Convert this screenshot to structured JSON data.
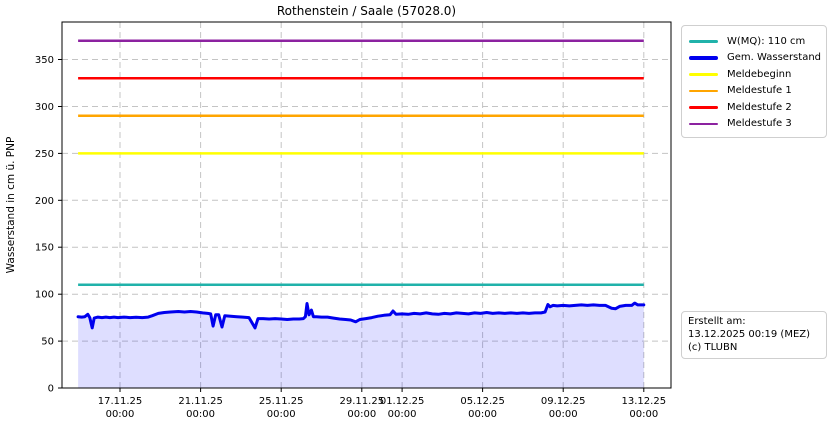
{
  "header": {
    "title": "Rothenstein / Saale (57028.0)"
  },
  "chart_data": {
    "type": "line",
    "title": "Rothenstein / Saale (57028.0)",
    "xlabel": "",
    "ylabel": "Wasserstand in cm ü. PNP",
    "grid": true,
    "legend_position": "upper right outside",
    "ylim": [
      0,
      390
    ],
    "xlim_days": [
      -2.88,
      27.35
    ],
    "y_ticks": [
      0,
      50,
      100,
      150,
      200,
      250,
      300,
      350
    ],
    "x_ticks": [
      {
        "day": 0,
        "label": "17.11.25",
        "sub": "00:00"
      },
      {
        "day": 4,
        "label": "21.11.25",
        "sub": "00:00"
      },
      {
        "day": 8,
        "label": "25.11.25",
        "sub": "00:00"
      },
      {
        "day": 12,
        "label": "29.11.25",
        "sub": "00:00"
      },
      {
        "day": 14,
        "label": "01.12.25",
        "sub": "00:00"
      },
      {
        "day": 18,
        "label": "05.12.25",
        "sub": "00:00"
      },
      {
        "day": 22,
        "label": "09.12.25",
        "sub": "00:00"
      },
      {
        "day": 26,
        "label": "13.12.25",
        "sub": "00:00"
      }
    ],
    "data_x_range_days": [
      -2.08,
      26.0
    ],
    "reference_lines": [
      {
        "name": "W(MQ): 110 cm",
        "value": 110,
        "color": "#20B2AA",
        "width": 2.5
      },
      {
        "name": "Meldebeginn",
        "value": 250,
        "color": "#FFFF00",
        "width": 2.5
      },
      {
        "name": "Meldestufe 1",
        "value": 290,
        "color": "#FFA500",
        "width": 2.5
      },
      {
        "name": "Meldestufe 2",
        "value": 330,
        "color": "#FF0000",
        "width": 2.5
      },
      {
        "name": "Meldestufe 3",
        "value": 370,
        "color": "#8C22A0",
        "width": 2.5
      }
    ],
    "series": [
      {
        "name": "Gem. Wasserstand",
        "color": "#0000EE",
        "width": 3,
        "fill": "rgba(0,0,255,0.13)",
        "unit": "cm",
        "points": [
          [
            -2.08,
            76
          ],
          [
            -1.9,
            75.5
          ],
          [
            -1.75,
            76
          ],
          [
            -1.6,
            78.5
          ],
          [
            -1.5,
            75
          ],
          [
            -1.38,
            64
          ],
          [
            -1.28,
            74.5
          ],
          [
            -1.1,
            75.5
          ],
          [
            -0.9,
            75
          ],
          [
            -0.7,
            75.5
          ],
          [
            -0.5,
            75
          ],
          [
            -0.3,
            75.5
          ],
          [
            -0.1,
            75
          ],
          [
            0.2,
            75.5
          ],
          [
            0.5,
            75
          ],
          [
            0.8,
            75.3
          ],
          [
            1.1,
            75
          ],
          [
            1.4,
            75.5
          ],
          [
            1.6,
            77
          ],
          [
            1.9,
            79.5
          ],
          [
            2.2,
            80.5
          ],
          [
            2.5,
            81
          ],
          [
            2.9,
            81.5
          ],
          [
            3.2,
            81
          ],
          [
            3.5,
            81.5
          ],
          [
            3.8,
            81
          ],
          [
            4.1,
            80
          ],
          [
            4.35,
            79.5
          ],
          [
            4.5,
            79
          ],
          [
            4.62,
            66
          ],
          [
            4.75,
            78
          ],
          [
            4.9,
            78
          ],
          [
            5.06,
            65
          ],
          [
            5.2,
            77
          ],
          [
            5.5,
            76.5
          ],
          [
            5.8,
            76
          ],
          [
            6.1,
            75.5
          ],
          [
            6.4,
            75
          ],
          [
            6.7,
            64
          ],
          [
            6.85,
            74
          ],
          [
            7.1,
            74
          ],
          [
            7.4,
            73.5
          ],
          [
            7.7,
            74
          ],
          [
            8.0,
            73.5
          ],
          [
            8.3,
            73
          ],
          [
            8.6,
            73.5
          ],
          [
            8.9,
            73.5
          ],
          [
            9.1,
            74
          ],
          [
            9.2,
            76
          ],
          [
            9.28,
            90
          ],
          [
            9.38,
            78
          ],
          [
            9.5,
            83
          ],
          [
            9.6,
            76
          ],
          [
            9.75,
            76
          ],
          [
            10.0,
            75.5
          ],
          [
            10.3,
            75.5
          ],
          [
            10.6,
            74.5
          ],
          [
            10.9,
            73.5
          ],
          [
            11.2,
            73
          ],
          [
            11.45,
            72.5
          ],
          [
            11.7,
            70.5
          ],
          [
            11.9,
            73
          ],
          [
            12.2,
            74
          ],
          [
            12.5,
            75
          ],
          [
            12.8,
            76.5
          ],
          [
            13.1,
            77.5
          ],
          [
            13.4,
            78
          ],
          [
            13.55,
            82
          ],
          [
            13.7,
            78.5
          ],
          [
            14.0,
            79
          ],
          [
            14.3,
            78.5
          ],
          [
            14.6,
            79.5
          ],
          [
            14.9,
            79
          ],
          [
            15.2,
            80
          ],
          [
            15.5,
            79
          ],
          [
            15.8,
            78.5
          ],
          [
            16.1,
            79.5
          ],
          [
            16.4,
            79
          ],
          [
            16.7,
            80
          ],
          [
            17.0,
            79.5
          ],
          [
            17.3,
            79
          ],
          [
            17.6,
            80
          ],
          [
            17.9,
            79.5
          ],
          [
            18.2,
            80.5
          ],
          [
            18.5,
            79.5
          ],
          [
            18.8,
            80
          ],
          [
            19.1,
            79.5
          ],
          [
            19.4,
            80
          ],
          [
            19.7,
            79.5
          ],
          [
            20.0,
            80
          ],
          [
            20.3,
            79.5
          ],
          [
            20.6,
            80
          ],
          [
            20.9,
            80
          ],
          [
            21.1,
            81
          ],
          [
            21.24,
            89
          ],
          [
            21.35,
            86.5
          ],
          [
            21.5,
            88
          ],
          [
            21.7,
            87.5
          ],
          [
            22.0,
            88
          ],
          [
            22.3,
            87.5
          ],
          [
            22.6,
            88
          ],
          [
            22.9,
            88.5
          ],
          [
            23.2,
            88
          ],
          [
            23.5,
            88.5
          ],
          [
            23.8,
            88
          ],
          [
            24.1,
            88
          ],
          [
            24.4,
            85
          ],
          [
            24.6,
            84.5
          ],
          [
            24.8,
            87
          ],
          [
            25.1,
            88
          ],
          [
            25.4,
            88
          ],
          [
            25.55,
            90.5
          ],
          [
            25.7,
            88.5
          ],
          [
            26.0,
            88.5
          ]
        ]
      }
    ],
    "legend": [
      {
        "label": "W(MQ): 110 cm",
        "color": "#20B2AA",
        "height": 2.5
      },
      {
        "label": "Gem. Wasserstand",
        "color": "#0000EE",
        "height": 4
      },
      {
        "label": "Meldebeginn",
        "color": "#FFFF00",
        "height": 2.5
      },
      {
        "label": "Meldestufe 1",
        "color": "#FFA500",
        "height": 2.5
      },
      {
        "label": "Meldestufe 2",
        "color": "#FF0000",
        "height": 2.5
      },
      {
        "label": "Meldestufe 3",
        "color": "#8C22A0",
        "height": 2.5
      }
    ]
  },
  "info_box": {
    "line1": "Erstellt am:",
    "line2": "13.12.2025 00:19 (MEZ)",
    "line3": "(c) TLUBN"
  }
}
